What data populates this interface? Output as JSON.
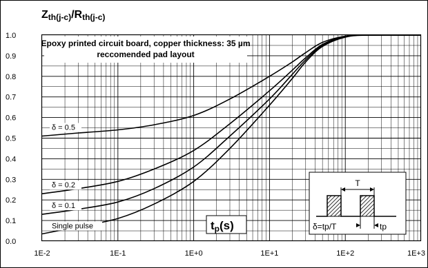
{
  "chart_data": {
    "type": "line",
    "title": "Zth(j-c)/Rth(j-c)",
    "title_parts": {
      "z": "Z",
      "z_sub": "th(j-c)",
      "sep": "/R",
      "r_sub": "th(j-c)"
    },
    "annotation_line1": "Epoxy printed circuit board, copper thickness: 35 µm",
    "annotation_line2": "reccomended pad layout",
    "xlabel": "tp(s)",
    "xlabel_parts": {
      "base": "t",
      "sub": "p",
      "rest": "(s)"
    },
    "xscale": "log",
    "xlim": [
      0.01,
      1000
    ],
    "ylim": [
      0,
      1
    ],
    "grid": true,
    "x_tick_labels": [
      "1E-2",
      "1E-1",
      "1E+0",
      "1E+1",
      "1E+2",
      "1E+3"
    ],
    "y_tick_labels": [
      "0.0",
      "0.1",
      "0.2",
      "0.3",
      "0.4",
      "0.5",
      "0.6",
      "0.7",
      "0.8",
      "0.9",
      "1.0"
    ],
    "series": [
      {
        "name": "δ = 0.5",
        "x": [
          0.01,
          0.03,
          0.1,
          0.3,
          1,
          3,
          10,
          20,
          30,
          50,
          100,
          200,
          1000
        ],
        "y": [
          0.51,
          0.525,
          0.54,
          0.565,
          0.61,
          0.69,
          0.8,
          0.87,
          0.915,
          0.965,
          0.995,
          1.0,
          1.0
        ]
      },
      {
        "name": "δ = 0.2",
        "x": [
          0.01,
          0.03,
          0.1,
          0.3,
          1,
          3,
          10,
          20,
          30,
          50,
          100,
          200,
          1000
        ],
        "y": [
          0.23,
          0.255,
          0.29,
          0.35,
          0.44,
          0.57,
          0.73,
          0.83,
          0.89,
          0.955,
          0.995,
          1.0,
          1.0
        ]
      },
      {
        "name": "δ = 0.1",
        "x": [
          0.01,
          0.03,
          0.1,
          0.3,
          1,
          3,
          10,
          20,
          30,
          50,
          100,
          200,
          1000
        ],
        "y": [
          0.13,
          0.155,
          0.19,
          0.255,
          0.36,
          0.51,
          0.69,
          0.81,
          0.88,
          0.95,
          0.993,
          1.0,
          1.0
        ]
      },
      {
        "name": "Single pulse",
        "x": [
          0.01,
          0.03,
          0.1,
          0.3,
          1,
          3,
          10,
          20,
          30,
          50,
          100,
          200,
          1000
        ],
        "y": [
          0.035,
          0.07,
          0.11,
          0.18,
          0.29,
          0.45,
          0.66,
          0.79,
          0.87,
          0.945,
          0.99,
          1.0,
          1.0
        ]
      }
    ],
    "inset": {
      "period_label": "T",
      "duty_label": "δ=tp/T",
      "pulse_label": "tp"
    }
  }
}
